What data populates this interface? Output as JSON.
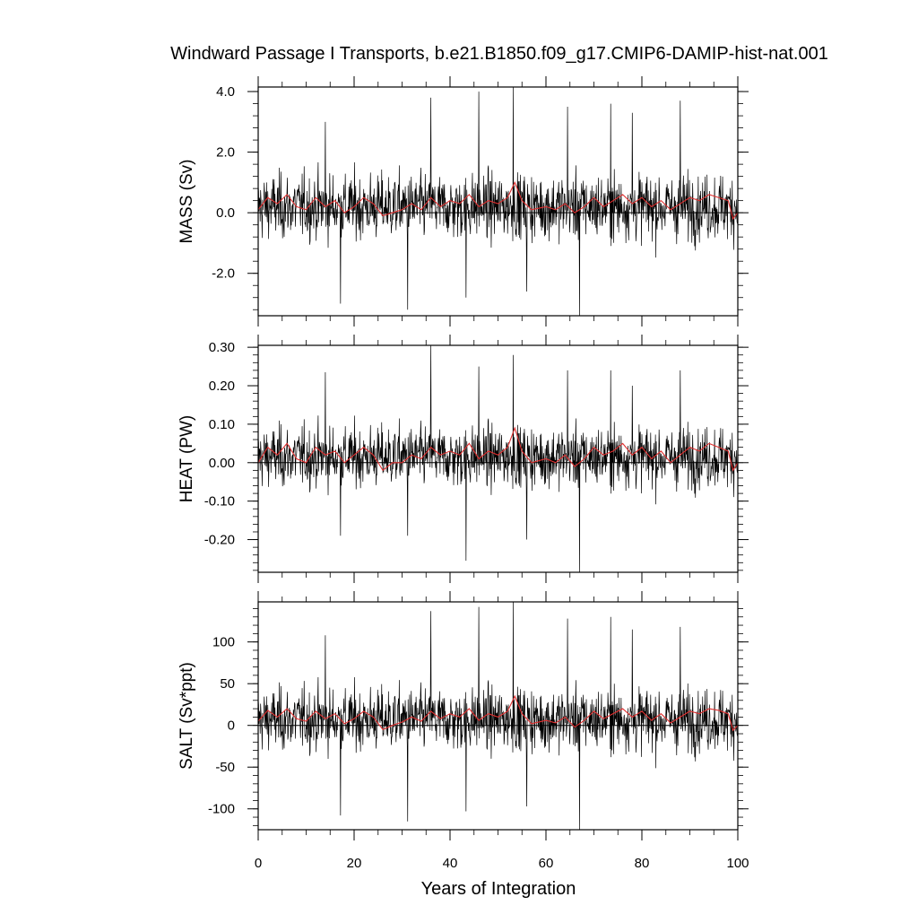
{
  "title": "Windward Passage I Transports, b.e21.B1850.f09_g17.CMIP6-DAMIP-hist-nat.001",
  "xlabel": "Years of Integration",
  "colors": {
    "raw": "#000000",
    "smooth": "#e03030",
    "axis": "#000000"
  },
  "chart_data": [
    {
      "type": "line",
      "ylabel": "MASS (Sv)",
      "xlim": [
        0,
        100
      ],
      "ylim": [
        -3.4,
        4.15
      ],
      "yticks": [
        -2.0,
        0.0,
        2.0,
        4.0
      ],
      "ytick_labels": [
        "-2.0",
        "0.0",
        "2.0",
        "4.0"
      ],
      "xticks": [
        0,
        20,
        40,
        60,
        80,
        100
      ],
      "xtick_labels": [
        "",
        "",
        "",
        "",
        "",
        ""
      ],
      "grid": false,
      "series": [
        {
          "role": "monthly",
          "amplitude": 0.75,
          "offset": 0.2,
          "spikes": [
            [
              14,
              3.0
            ],
            [
              17.2,
              -3.0
            ],
            [
              31.2,
              -3.2
            ],
            [
              36,
              3.8
            ],
            [
              43.3,
              -2.8
            ],
            [
              46,
              4.0
            ],
            [
              53.2,
              4.15
            ],
            [
              56,
              -2.6
            ],
            [
              64.5,
              3.5
            ],
            [
              67,
              -3.4
            ],
            [
              73.5,
              3.6
            ],
            [
              78,
              3.3
            ],
            [
              88,
              3.7
            ]
          ]
        },
        {
          "role": "smoothed",
          "values": [
            [
              0,
              0.1
            ],
            [
              2,
              0.5
            ],
            [
              4,
              0.3
            ],
            [
              6,
              0.6
            ],
            [
              8,
              0.2
            ],
            [
              10,
              0.1
            ],
            [
              12,
              0.5
            ],
            [
              14,
              0.2
            ],
            [
              16,
              0.4
            ],
            [
              18,
              0.0
            ],
            [
              20,
              0.2
            ],
            [
              22,
              0.5
            ],
            [
              24,
              0.3
            ],
            [
              26,
              -0.1
            ],
            [
              28,
              0.0
            ],
            [
              30,
              0.1
            ],
            [
              32,
              0.3
            ],
            [
              34,
              0.1
            ],
            [
              36,
              0.5
            ],
            [
              38,
              0.2
            ],
            [
              40,
              0.4
            ],
            [
              42,
              0.3
            ],
            [
              44,
              0.6
            ],
            [
              46,
              0.2
            ],
            [
              48,
              0.4
            ],
            [
              50,
              0.3
            ],
            [
              52,
              0.5
            ],
            [
              53.5,
              1.0
            ],
            [
              55,
              0.4
            ],
            [
              57,
              0.1
            ],
            [
              60,
              0.2
            ],
            [
              62,
              0.1
            ],
            [
              64,
              0.3
            ],
            [
              66,
              0.0
            ],
            [
              68,
              0.2
            ],
            [
              70,
              0.5
            ],
            [
              72,
              0.2
            ],
            [
              74,
              0.4
            ],
            [
              76,
              0.6
            ],
            [
              78,
              0.3
            ],
            [
              80,
              0.5
            ],
            [
              82,
              0.2
            ],
            [
              84,
              0.4
            ],
            [
              86,
              0.1
            ],
            [
              88,
              0.3
            ],
            [
              90,
              0.5
            ],
            [
              92,
              0.4
            ],
            [
              94,
              0.6
            ],
            [
              96,
              0.5
            ],
            [
              98,
              0.4
            ],
            [
              99,
              -0.2
            ],
            [
              100,
              0.0
            ]
          ]
        }
      ]
    },
    {
      "type": "line",
      "ylabel": "HEAT (PW)",
      "xlim": [
        0,
        100
      ],
      "ylim": [
        -0.285,
        0.305
      ],
      "yticks": [
        -0.2,
        -0.1,
        0.0,
        0.1,
        0.2,
        0.3
      ],
      "ytick_labels": [
        "-0.20",
        "-0.10",
        "0.00",
        "0.10",
        "0.20",
        "0.30"
      ],
      "xticks": [
        0,
        20,
        40,
        60,
        80,
        100
      ],
      "xtick_labels": [
        "",
        "",
        "",
        "",
        "",
        ""
      ],
      "grid": false,
      "series": [
        {
          "role": "monthly",
          "amplitude": 0.055,
          "offset": 0.015,
          "spikes": [
            [
              14,
              0.235
            ],
            [
              17.2,
              -0.19
            ],
            [
              31.2,
              -0.19
            ],
            [
              36,
              0.305
            ],
            [
              43.3,
              -0.255
            ],
            [
              46,
              0.25
            ],
            [
              53.2,
              0.28
            ],
            [
              56,
              -0.2
            ],
            [
              64.5,
              0.24
            ],
            [
              67,
              -0.285
            ],
            [
              73.5,
              0.24
            ],
            [
              78,
              0.2
            ],
            [
              88,
              0.24
            ]
          ]
        },
        {
          "role": "smoothed",
          "values": [
            [
              0,
              0.0
            ],
            [
              2,
              0.04
            ],
            [
              4,
              0.02
            ],
            [
              6,
              0.05
            ],
            [
              8,
              0.01
            ],
            [
              10,
              0.0
            ],
            [
              12,
              0.04
            ],
            [
              14,
              0.02
            ],
            [
              16,
              0.03
            ],
            [
              18,
              0.0
            ],
            [
              20,
              0.02
            ],
            [
              22,
              0.04
            ],
            [
              24,
              0.02
            ],
            [
              26,
              -0.02
            ],
            [
              28,
              0.0
            ],
            [
              30,
              0.0
            ],
            [
              32,
              0.02
            ],
            [
              34,
              0.01
            ],
            [
              36,
              0.04
            ],
            [
              38,
              0.02
            ],
            [
              40,
              0.03
            ],
            [
              42,
              0.02
            ],
            [
              44,
              0.05
            ],
            [
              46,
              0.01
            ],
            [
              48,
              0.03
            ],
            [
              50,
              0.02
            ],
            [
              52,
              0.04
            ],
            [
              53.5,
              0.09
            ],
            [
              55,
              0.03
            ],
            [
              57,
              0.0
            ],
            [
              60,
              0.01
            ],
            [
              62,
              0.0
            ],
            [
              64,
              0.02
            ],
            [
              66,
              -0.01
            ],
            [
              68,
              0.01
            ],
            [
              70,
              0.04
            ],
            [
              72,
              0.02
            ],
            [
              74,
              0.03
            ],
            [
              76,
              0.05
            ],
            [
              78,
              0.02
            ],
            [
              80,
              0.04
            ],
            [
              82,
              0.01
            ],
            [
              84,
              0.03
            ],
            [
              86,
              0.0
            ],
            [
              88,
              0.02
            ],
            [
              90,
              0.04
            ],
            [
              92,
              0.03
            ],
            [
              94,
              0.05
            ],
            [
              96,
              0.04
            ],
            [
              98,
              0.03
            ],
            [
              99,
              -0.02
            ],
            [
              100,
              0.0
            ]
          ]
        }
      ]
    },
    {
      "type": "line",
      "ylabel": "SALT (Sv*ppt)",
      "xlim": [
        0,
        100
      ],
      "ylim": [
        -125,
        148
      ],
      "yticks": [
        -100,
        -50,
        0,
        50,
        100
      ],
      "ytick_labels": [
        "-100",
        "-50",
        "0",
        "50",
        "100"
      ],
      "xticks": [
        0,
        20,
        40,
        60,
        80,
        100
      ],
      "xtick_labels": [
        "0",
        "20",
        "40",
        "60",
        "80",
        "100"
      ],
      "grid": false,
      "series": [
        {
          "role": "monthly",
          "amplitude": 26,
          "offset": 7,
          "spikes": [
            [
              14,
              108
            ],
            [
              17.2,
              -108
            ],
            [
              31.2,
              -115
            ],
            [
              36,
              137
            ],
            [
              43.3,
              -103
            ],
            [
              46,
              142
            ],
            [
              53.2,
              148
            ],
            [
              56,
              -97
            ],
            [
              64.5,
              128
            ],
            [
              67,
              -125
            ],
            [
              73.5,
              130
            ],
            [
              78,
              115
            ],
            [
              88,
              118
            ]
          ]
        },
        {
          "role": "smoothed",
          "values": [
            [
              0,
              5
            ],
            [
              2,
              18
            ],
            [
              4,
              10
            ],
            [
              6,
              20
            ],
            [
              8,
              8
            ],
            [
              10,
              5
            ],
            [
              12,
              17
            ],
            [
              14,
              8
            ],
            [
              16,
              14
            ],
            [
              18,
              2
            ],
            [
              20,
              8
            ],
            [
              22,
              17
            ],
            [
              24,
              10
            ],
            [
              26,
              -5
            ],
            [
              28,
              0
            ],
            [
              30,
              4
            ],
            [
              32,
              10
            ],
            [
              34,
              5
            ],
            [
              36,
              17
            ],
            [
              38,
              8
            ],
            [
              40,
              14
            ],
            [
              42,
              10
            ],
            [
              44,
              20
            ],
            [
              46,
              6
            ],
            [
              48,
              14
            ],
            [
              50,
              10
            ],
            [
              52,
              17
            ],
            [
              53.5,
              35
            ],
            [
              55,
              14
            ],
            [
              57,
              2
            ],
            [
              60,
              6
            ],
            [
              62,
              3
            ],
            [
              64,
              10
            ],
            [
              66,
              -2
            ],
            [
              68,
              6
            ],
            [
              70,
              17
            ],
            [
              72,
              8
            ],
            [
              74,
              14
            ],
            [
              76,
              20
            ],
            [
              78,
              10
            ],
            [
              80,
              17
            ],
            [
              82,
              6
            ],
            [
              84,
              14
            ],
            [
              86,
              3
            ],
            [
              88,
              10
            ],
            [
              90,
              17
            ],
            [
              92,
              14
            ],
            [
              94,
              20
            ],
            [
              96,
              18
            ],
            [
              98,
              14
            ],
            [
              99,
              -6
            ],
            [
              100,
              0
            ]
          ]
        }
      ]
    }
  ]
}
